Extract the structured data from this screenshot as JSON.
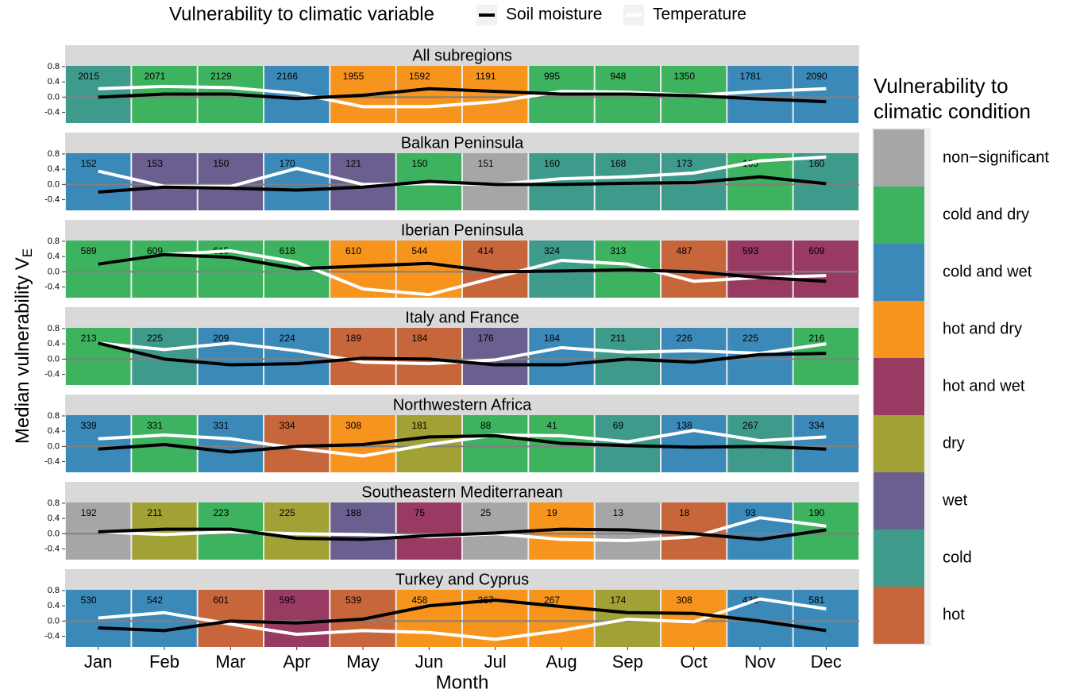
{
  "chart_data": {
    "type": "line",
    "legend_title": "Vulnerability to climatic variable",
    "series": [
      {
        "name": "Soil moisture",
        "color": "#000000"
      },
      {
        "name": "Temperature",
        "color": "#ffffff"
      }
    ],
    "fill_legend": {
      "title": "Vulnerability to climatic condition",
      "categories": [
        {
          "name": "non−significant",
          "color": "#a6a6a6"
        },
        {
          "name": "cold and dry",
          "color": "#3db35f"
        },
        {
          "name": "cold and wet",
          "color": "#3a89b9"
        },
        {
          "name": "hot and dry",
          "color": "#f7941d"
        },
        {
          "name": "hot and wet",
          "color": "#983a62"
        },
        {
          "name": "dry",
          "color": "#a1a136"
        },
        {
          "name": "wet",
          "color": "#6a5f8f"
        },
        {
          "name": "cold",
          "color": "#3e9b8b"
        },
        {
          "name": "hot",
          "color": "#c8663b"
        }
      ]
    },
    "x_label": "Month",
    "y_label": "Median vulnerability V",
    "y_label_subscript": "E",
    "x": [
      "Jan",
      "Feb",
      "Mar",
      "Apr",
      "May",
      "Jun",
      "Jul",
      "Aug",
      "Sep",
      "Oct",
      "Nov",
      "Dec"
    ],
    "ylim": [
      -0.68,
      0.82
    ],
    "yticks": [
      -0.4,
      {
        "value": 0,
        "label": "0.0"
      },
      0.4,
      0.8
    ],
    "facets": [
      {
        "title": "All subregions",
        "conditions": [
          "cold",
          "cold and dry",
          "cold and dry",
          "cold and wet",
          "hot and dry",
          "hot and dry",
          "hot and dry",
          "cold and dry",
          "cold and dry",
          "cold and dry",
          "cold and wet",
          "cold and wet"
        ],
        "counts": [
          2015,
          2071,
          2129,
          2166,
          1955,
          1592,
          1191,
          995,
          948,
          1350,
          1781,
          2090
        ],
        "series": [
          {
            "values": [
              0.0,
              0.08,
              0.08,
              -0.04,
              0.05,
              0.22,
              0.15,
              0.08,
              0.08,
              0.04,
              -0.05,
              -0.12
            ]
          },
          {
            "values": [
              0.22,
              0.28,
              0.25,
              0.1,
              -0.25,
              -0.25,
              -0.12,
              0.15,
              0.13,
              0.05,
              0.15,
              0.22
            ]
          }
        ]
      },
      {
        "title": "Balkan Peninsula",
        "conditions": [
          "cold and wet",
          "wet",
          "wet",
          "cold and wet",
          "wet",
          "cold and dry",
          "non−significant",
          "cold",
          "cold",
          "cold",
          "cold and dry",
          "cold"
        ],
        "counts": [
          152,
          153,
          150,
          170,
          121,
          150,
          151,
          160,
          168,
          173,
          165,
          160
        ],
        "series": [
          {
            "values": [
              -0.2,
              -0.07,
              -0.1,
              -0.15,
              -0.07,
              0.08,
              0.0,
              0.0,
              0.03,
              0.05,
              0.2,
              0.02
            ]
          },
          {
            "values": [
              0.35,
              -0.05,
              -0.05,
              0.42,
              0.0,
              0.02,
              0.0,
              0.15,
              0.2,
              0.3,
              0.62,
              0.72
            ]
          }
        ]
      },
      {
        "title": "Iberian Peninsula",
        "conditions": [
          "cold and dry",
          "cold and dry",
          "cold and dry",
          "cold and dry",
          "hot and dry",
          "hot and dry",
          "hot",
          "cold",
          "cold and dry",
          "hot",
          "hot and wet",
          "hot and wet"
        ],
        "counts": [
          589,
          609,
          615,
          618,
          610,
          544,
          414,
          324,
          313,
          487,
          593,
          609
        ],
        "series": [
          {
            "values": [
              0.2,
              0.45,
              0.38,
              0.08,
              0.15,
              0.22,
              0.0,
              0.02,
              0.05,
              0.0,
              -0.15,
              -0.25
            ]
          },
          {
            "values": [
              0.2,
              0.45,
              0.55,
              0.25,
              -0.45,
              -0.6,
              -0.15,
              0.3,
              0.2,
              -0.25,
              -0.15,
              -0.1
            ]
          }
        ]
      },
      {
        "title": "Italy and France",
        "conditions": [
          "cold and dry",
          "cold",
          "cold and wet",
          "cold and wet",
          "hot",
          "hot",
          "wet",
          "cold and wet",
          "cold",
          "cold and wet",
          "cold and wet",
          "cold and dry"
        ],
        "counts": [
          213,
          225,
          209,
          224,
          189,
          184,
          176,
          184,
          211,
          226,
          225,
          216
        ],
        "series": [
          {
            "values": [
              0.42,
              0.0,
              -0.15,
              -0.12,
              0.02,
              0.0,
              -0.15,
              -0.15,
              0.0,
              -0.08,
              0.12,
              0.15
            ]
          },
          {
            "values": [
              0.42,
              0.25,
              0.42,
              0.22,
              -0.08,
              -0.12,
              -0.02,
              0.3,
              0.18,
              0.22,
              0.15,
              0.4
            ]
          }
        ]
      },
      {
        "title": "Northwestern Africa",
        "conditions": [
          "cold and wet",
          "cold and dry",
          "cold and wet",
          "hot",
          "hot and dry",
          "dry",
          "cold and dry",
          "cold and dry",
          "cold",
          "cold and wet",
          "cold",
          "cold and wet"
        ],
        "counts": [
          339,
          331,
          331,
          334,
          308,
          181,
          88,
          41,
          69,
          138,
          267,
          334
        ],
        "series": [
          {
            "values": [
              -0.07,
              0.05,
              -0.15,
              0.0,
              0.05,
              0.25,
              0.28,
              0.08,
              0.02,
              -0.02,
              0.0,
              -0.07
            ]
          },
          {
            "values": [
              0.2,
              0.3,
              0.2,
              -0.05,
              -0.25,
              0.05,
              0.3,
              0.28,
              0.12,
              0.42,
              0.15,
              0.25
            ]
          }
        ]
      },
      {
        "title": "Southeastern Mediterranean",
        "conditions": [
          "non−significant",
          "dry",
          "cold and dry",
          "dry",
          "wet",
          "hot and wet",
          "non−significant",
          "hot and dry",
          "non−significant",
          "hot",
          "cold and wet",
          "cold and dry"
        ],
        "counts": [
          192,
          211,
          223,
          225,
          188,
          75,
          25,
          19,
          13,
          18,
          93,
          190
        ],
        "series": [
          {
            "values": [
              0.05,
              0.12,
              0.12,
              -0.12,
              -0.15,
              -0.05,
              0.02,
              0.12,
              0.1,
              0.0,
              -0.15,
              0.1
            ]
          },
          {
            "values": [
              0.05,
              -0.02,
              0.05,
              0.0,
              -0.02,
              -0.08,
              0.0,
              -0.15,
              -0.18,
              -0.08,
              0.42,
              0.2
            ]
          }
        ]
      },
      {
        "title": "Turkey and Cyprus",
        "conditions": [
          "cold and wet",
          "cold and wet",
          "hot",
          "hot and wet",
          "hot",
          "hot and dry",
          "hot and dry",
          "hot and dry",
          "dry",
          "hot and dry",
          "cold and wet",
          "cold and wet"
        ],
        "counts": [
          530,
          542,
          601,
          595,
          539,
          458,
          367,
          267,
          174,
          308,
          438,
          581
        ],
        "series": [
          {
            "values": [
              -0.18,
              -0.25,
              0.0,
              -0.05,
              0.05,
              0.4,
              0.55,
              0.38,
              0.22,
              0.2,
              0.0,
              -0.25
            ]
          },
          {
            "values": [
              0.08,
              0.22,
              -0.08,
              -0.35,
              -0.25,
              -0.3,
              -0.48,
              -0.25,
              0.05,
              -0.02,
              0.58,
              0.32
            ]
          }
        ]
      }
    ]
  }
}
